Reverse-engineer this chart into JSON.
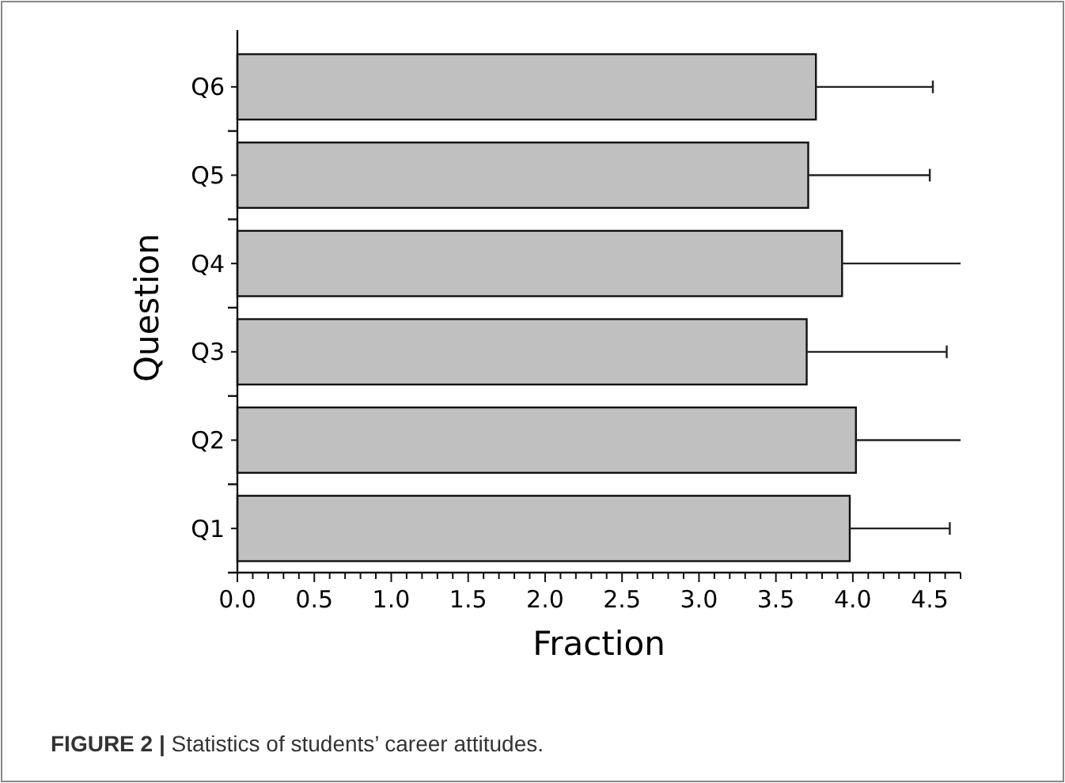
{
  "chart_data": {
    "type": "bar",
    "orientation": "horizontal",
    "categories": [
      "Q6",
      "Q5",
      "Q4",
      "Q3",
      "Q2",
      "Q1"
    ],
    "values": [
      3.76,
      3.71,
      3.93,
      3.7,
      4.02,
      3.98
    ],
    "errors": [
      [
        3.76,
        4.52
      ],
      [
        3.71,
        4.5
      ],
      [
        3.93,
        4.7
      ],
      [
        3.7,
        4.61
      ],
      [
        4.02,
        4.7
      ],
      [
        3.98,
        4.63
      ]
    ],
    "color": "#c0c0c0",
    "xlim": [
      0,
      4.7
    ],
    "xticks": [
      "0.0",
      {
        "value": 0.1,
        "label": null
      },
      {
        "value": 0.2,
        "label": null
      },
      {
        "value": 0.3,
        "label": null
      },
      {
        "value": 0.4,
        "label": null
      },
      {
        "value": 0.5,
        "label": "0.5"
      },
      {
        "value": 0.6,
        "label": null
      },
      {
        "value": 0.7,
        "label": null
      },
      {
        "value": 0.8,
        "label": null
      },
      {
        "value": 0.9,
        "label": null
      },
      {
        "value": 1,
        "label": "1.0"
      },
      {
        "value": 1.1,
        "label": null
      },
      {
        "value": 1.2,
        "label": null
      },
      {
        "value": 1.3,
        "label": null
      },
      {
        "value": 1.4,
        "label": null
      },
      {
        "value": 1.5,
        "label": "1.5"
      },
      {
        "value": 1.6,
        "label": null
      },
      {
        "value": 1.7,
        "label": null
      },
      {
        "value": 1.8,
        "label": null
      },
      {
        "value": 1.9,
        "label": null
      },
      {
        "value": 2,
        "label": "2.0"
      },
      {
        "value": 2.1,
        "label": null
      },
      {
        "value": 2.2,
        "label": null
      },
      {
        "value": 2.3,
        "label": null
      },
      {
        "value": 2.4,
        "label": null
      },
      {
        "value": 2.5,
        "label": "2.5"
      },
      {
        "value": 2.6,
        "label": null
      },
      {
        "value": 2.7,
        "label": null
      },
      {
        "value": 2.8,
        "label": null
      },
      {
        "value": 2.9,
        "label": null
      },
      {
        "value": 3,
        "label": "3.0"
      },
      {
        "value": 3.1,
        "label": null
      },
      {
        "value": 3.2,
        "label": null
      },
      {
        "value": 3.3,
        "label": null
      },
      {
        "value": 3.4,
        "label": null
      },
      {
        "value": 3.5,
        "label": "3.5"
      },
      {
        "value": 3.6,
        "label": null
      },
      {
        "value": 3.7,
        "label": null
      },
      {
        "value": 3.8,
        "label": null
      },
      {
        "value": 3.9,
        "label": null
      },
      {
        "value": 4,
        "label": "4.0"
      },
      {
        "value": 4.1,
        "label": null
      },
      {
        "value": 4.2,
        "label": null
      },
      {
        "value": 4.3,
        "label": null
      },
      {
        "value": 4.4,
        "label": null
      },
      {
        "value": 4.5,
        "label": "4.5"
      },
      {
        "value": 4.6,
        "label": null
      },
      {
        "value": 4.7,
        "label": null
      }
    ],
    "xlabel": "Fraction",
    "ylabel": "Question",
    "annotations": [
      "FIGURE 2 | Statistics of students’ career attitudes."
    ]
  }
}
